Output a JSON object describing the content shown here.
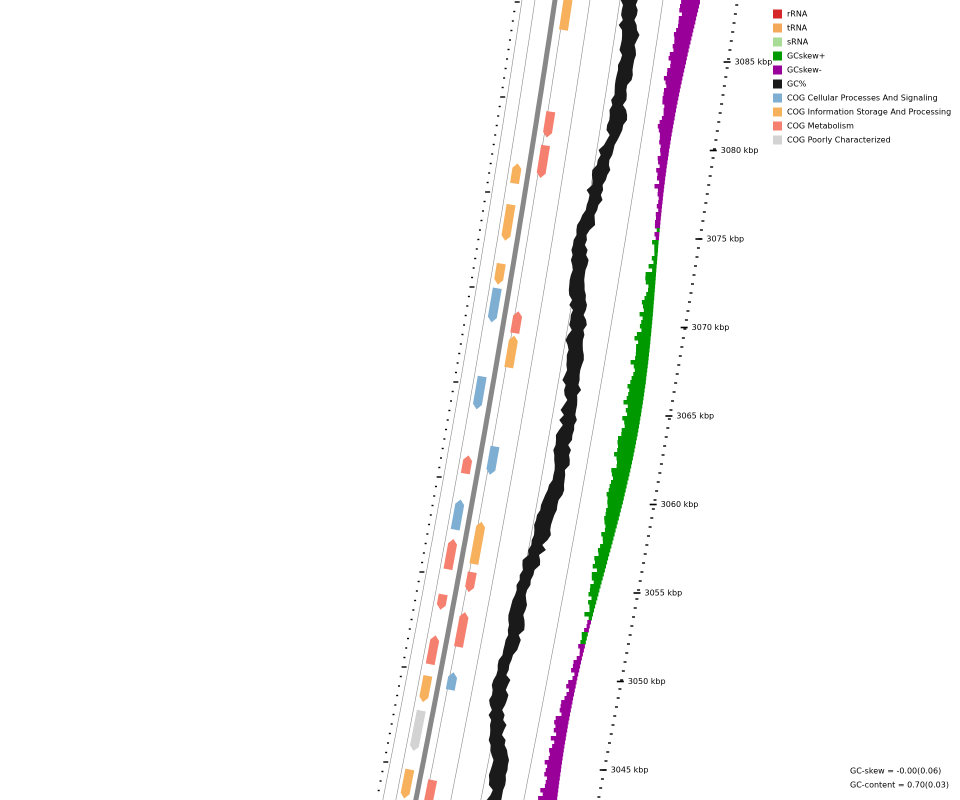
{
  "legend": [
    {
      "label": "rRNA",
      "color": "#d62728"
    },
    {
      "label": "tRNA",
      "color": "#f4a95a"
    },
    {
      "label": "sRNA",
      "color": "#a8dc96"
    },
    {
      "label": "GCskew+",
      "color": "#009900"
    },
    {
      "label": "GCskew-",
      "color": "#990099"
    },
    {
      "label": "GC%",
      "color": "#1a1a1a"
    },
    {
      "label": "COG Cellular Processes And Signaling",
      "color": "#7faed3"
    },
    {
      "label": "COG Information Storage And Processing",
      "color": "#f7b05c"
    },
    {
      "label": "COG Metabolism",
      "color": "#f6806f"
    },
    {
      "label": "COG Poorly Characterized",
      "color": "#d3d3d3"
    }
  ],
  "scale": {
    "ticks": [
      "3085 kbp",
      "3080 kbp",
      "3075 kbp",
      "3070 kbp",
      "3065 kbp",
      "3060 kbp",
      "3055 kbp",
      "3050 kbp",
      "3045 kbp"
    ]
  },
  "stats": {
    "gc_skew": "GC-skew = -0.00(0.06)",
    "gc_content": "GC-content = 0.70(0.03)"
  }
}
